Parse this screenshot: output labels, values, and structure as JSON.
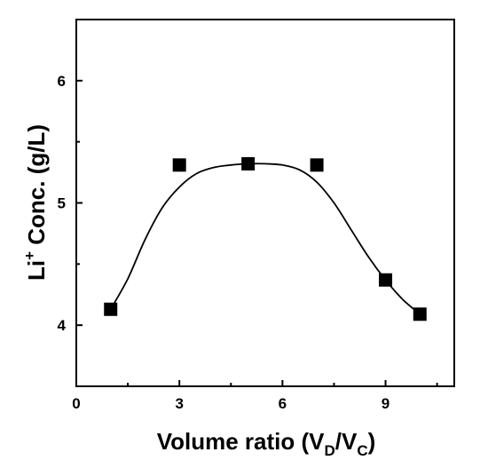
{
  "chart_data": {
    "type": "scatter",
    "title": "",
    "xlabel": {
      "main": "Volume ratio (V",
      "sub1": "D",
      "mid": "/V",
      "sub2": "C",
      "end": ")"
    },
    "ylabel": {
      "main": "Li",
      "sup": "+",
      "rest": " Conc. (g/L)"
    },
    "xlim": [
      0,
      11
    ],
    "ylim": [
      3.5,
      6.5
    ],
    "x_ticks": [
      0,
      3,
      6,
      9
    ],
    "x_minor_ticks": [
      1.5,
      4.5,
      7.5,
      10.5
    ],
    "y_ticks": [
      4,
      5,
      6
    ],
    "y_minor_ticks": [
      3.5,
      4.5,
      5.5,
      6.5
    ],
    "grid": false,
    "marker": "square",
    "color": "#000000",
    "points": [
      {
        "x": 1,
        "y": 4.13
      },
      {
        "x": 3,
        "y": 5.31
      },
      {
        "x": 5,
        "y": 5.32
      },
      {
        "x": 7,
        "y": 5.31
      },
      {
        "x": 9,
        "y": 4.37
      },
      {
        "x": 10,
        "y": 4.09
      }
    ],
    "fit_curve": [
      {
        "x": 1.0,
        "y": 4.13
      },
      {
        "x": 1.5,
        "y": 4.38
      },
      {
        "x": 2.0,
        "y": 4.7
      },
      {
        "x": 2.5,
        "y": 4.96
      },
      {
        "x": 3.0,
        "y": 5.13
      },
      {
        "x": 3.5,
        "y": 5.24
      },
      {
        "x": 4.0,
        "y": 5.29
      },
      {
        "x": 4.5,
        "y": 5.31
      },
      {
        "x": 5.0,
        "y": 5.32
      },
      {
        "x": 5.5,
        "y": 5.32
      },
      {
        "x": 6.0,
        "y": 5.31
      },
      {
        "x": 6.5,
        "y": 5.27
      },
      {
        "x": 7.0,
        "y": 5.17
      },
      {
        "x": 7.5,
        "y": 5.0
      },
      {
        "x": 8.0,
        "y": 4.78
      },
      {
        "x": 8.5,
        "y": 4.56
      },
      {
        "x": 9.0,
        "y": 4.37
      },
      {
        "x": 9.5,
        "y": 4.21
      },
      {
        "x": 10.0,
        "y": 4.09
      }
    ]
  }
}
